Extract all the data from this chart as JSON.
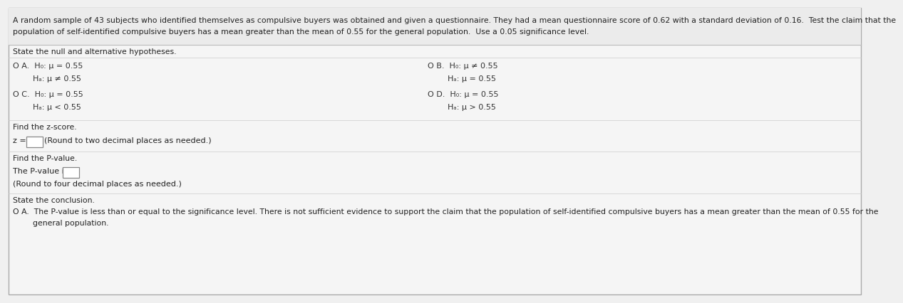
{
  "bg_color": "#f0f0f0",
  "header_bg": "#e8e8e8",
  "body_bg": "#f4f4f4",
  "title_line1": "A random sample of 43 subjects who identified themselves as compulsive buyers was obtained and given a questionnaire. They had a mean questionnaire score of 0.62 with a standard deviation of 0.16.  Test the claim that the",
  "title_line2": "population of self-identified compulsive buyers has a mean greater than the mean of 0.55 for the general population.  Use a 0.05 significance level.",
  "section1": "State the null and alternative hypotheses.",
  "optA_line1": "O A.  H₀: μ = 0.55",
  "optA_line2": "        Hₐ: μ ≠ 0.55",
  "optB_line1": "O B.  H₀: μ ≠ 0.55",
  "optB_line2": "        Hₐ: μ = 0.55",
  "optC_line1": "O C.  H₀: μ = 0.55",
  "optC_line2": "        Hₐ: μ < 0.55",
  "optD_line1": "O D.  H₀: μ = 0.55",
  "optD_line2": "        Hₐ: μ > 0.55",
  "section2": "Find the z-score.",
  "zscore_label": "z = ",
  "zscore_hint": "(Round to two decimal places as needed.)",
  "section3": "Find the P-value.",
  "pvalue_label": "The P-value is ",
  "pvalue_hint": "(Round to four decimal places as needed.)",
  "section4": "State the conclusion.",
  "concl_line1": "O A.  The P-value is less than or equal to the significance level. There is not sufficient evidence to support the claim that the population of self-identified compulsive buyers has a mean greater than the mean of 0.55 for the",
  "concl_line2": "        general population."
}
